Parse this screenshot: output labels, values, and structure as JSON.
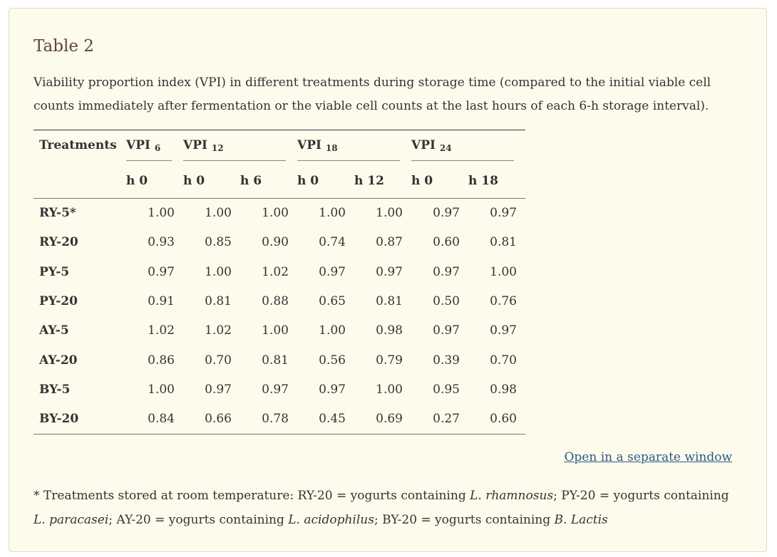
{
  "table_title": "Table 2",
  "caption": "Viability proportion index (VPI) in different treatments during storage time (compared to the initial viable cell counts immediately after fermentation or the viable cell counts at the last hours of each 6-h storage interval).",
  "header": {
    "treatments": "Treatments",
    "groups": [
      {
        "label": "VPI",
        "sub": "6"
      },
      {
        "label": "VPI",
        "sub": "12"
      },
      {
        "label": "VPI",
        "sub": "18"
      },
      {
        "label": "VPI",
        "sub": "24"
      }
    ],
    "subcols": [
      "h 0",
      "h 0",
      "h 6",
      "h 0",
      "h 12",
      "h 0",
      "h 18"
    ]
  },
  "rows": [
    {
      "label": "RY-5*",
      "values": [
        "1.00",
        "1.00",
        "1.00",
        "1.00",
        "1.00",
        "0.97",
        "0.97"
      ]
    },
    {
      "label": "RY-20",
      "values": [
        "0.93",
        "0.85",
        "0.90",
        "0.74",
        "0.87",
        "0.60",
        "0.81"
      ]
    },
    {
      "label": "PY-5",
      "values": [
        "0.97",
        "1.00",
        "1.02",
        "0.97",
        "0.97",
        "0.97",
        "1.00"
      ]
    },
    {
      "label": "PY-20",
      "values": [
        "0.91",
        "0.81",
        "0.88",
        "0.65",
        "0.81",
        "0.50",
        "0.76"
      ]
    },
    {
      "label": "AY-5",
      "values": [
        "1.02",
        "1.02",
        "1.00",
        "1.00",
        "0.98",
        "0.97",
        "0.97"
      ]
    },
    {
      "label": "AY-20",
      "values": [
        "0.86",
        "0.70",
        "0.81",
        "0.56",
        "0.79",
        "0.39",
        "0.70"
      ]
    },
    {
      "label": "BY-5",
      "values": [
        "1.00",
        "0.97",
        "0.97",
        "0.97",
        "1.00",
        "0.95",
        "0.98"
      ]
    },
    {
      "label": "BY-20",
      "values": [
        "0.84",
        "0.66",
        "0.78",
        "0.45",
        "0.69",
        "0.27",
        "0.60"
      ]
    }
  ],
  "open_link": "Open in a separate window",
  "footnote": {
    "p1": "* Treatments stored at room temperature: RY-20 = yogurts containing ",
    "i1": "L. rhamnosus",
    "p2": "; PY-20 = yogurts containing ",
    "i2": "L. paracasei",
    "p3": "; AY-20 = yogurts containing ",
    "i3": "L. acidophilus",
    "p4": "; BY-20 = yogurts containing ",
    "i4": "B. Lactis"
  }
}
